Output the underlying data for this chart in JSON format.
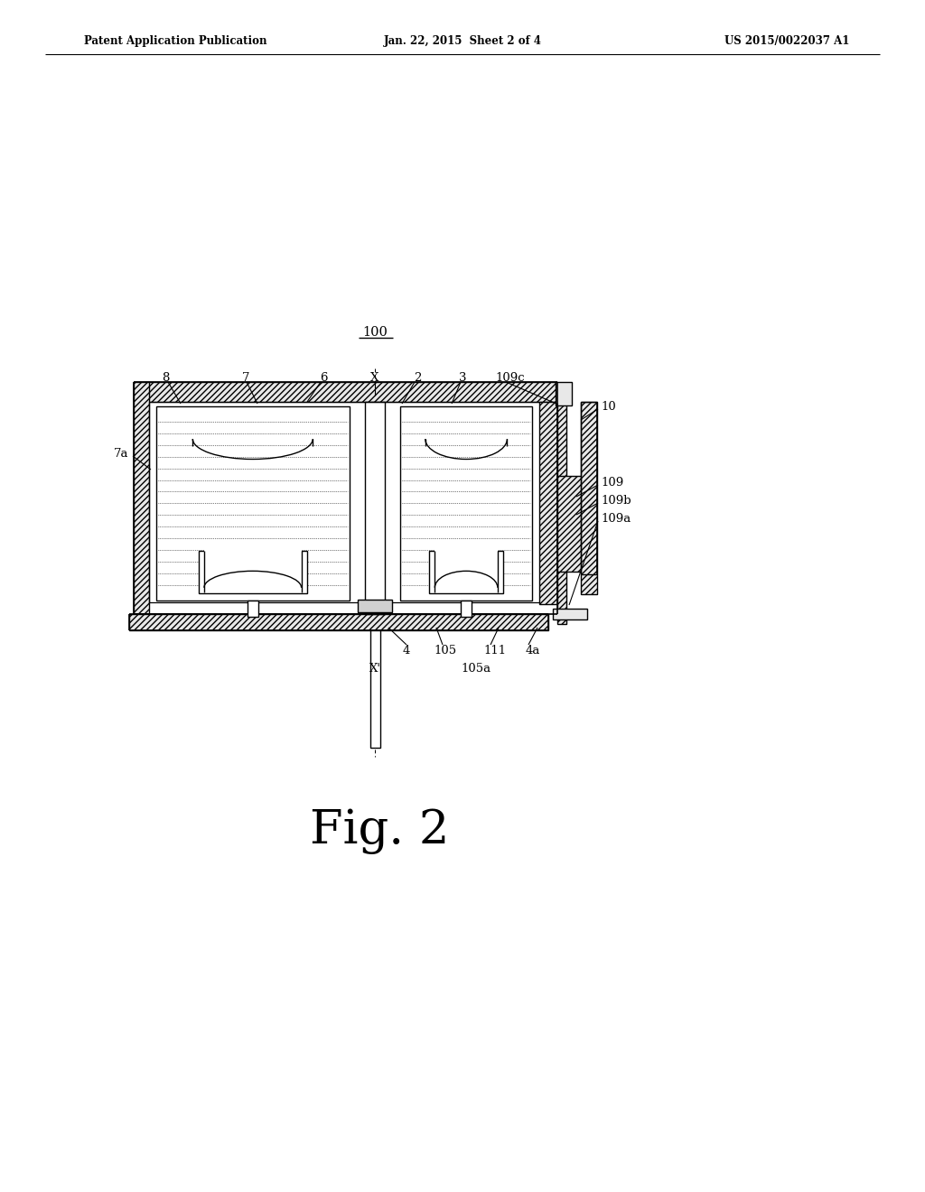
{
  "bg_color": "#ffffff",
  "lc": "#000000",
  "header_left": "Patent Application Publication",
  "header_mid": "Jan. 22, 2015  Sheet 2 of 4",
  "header_right": "US 2015/0022037 A1",
  "fig_label": "Fig. 2",
  "ref_100": "100"
}
